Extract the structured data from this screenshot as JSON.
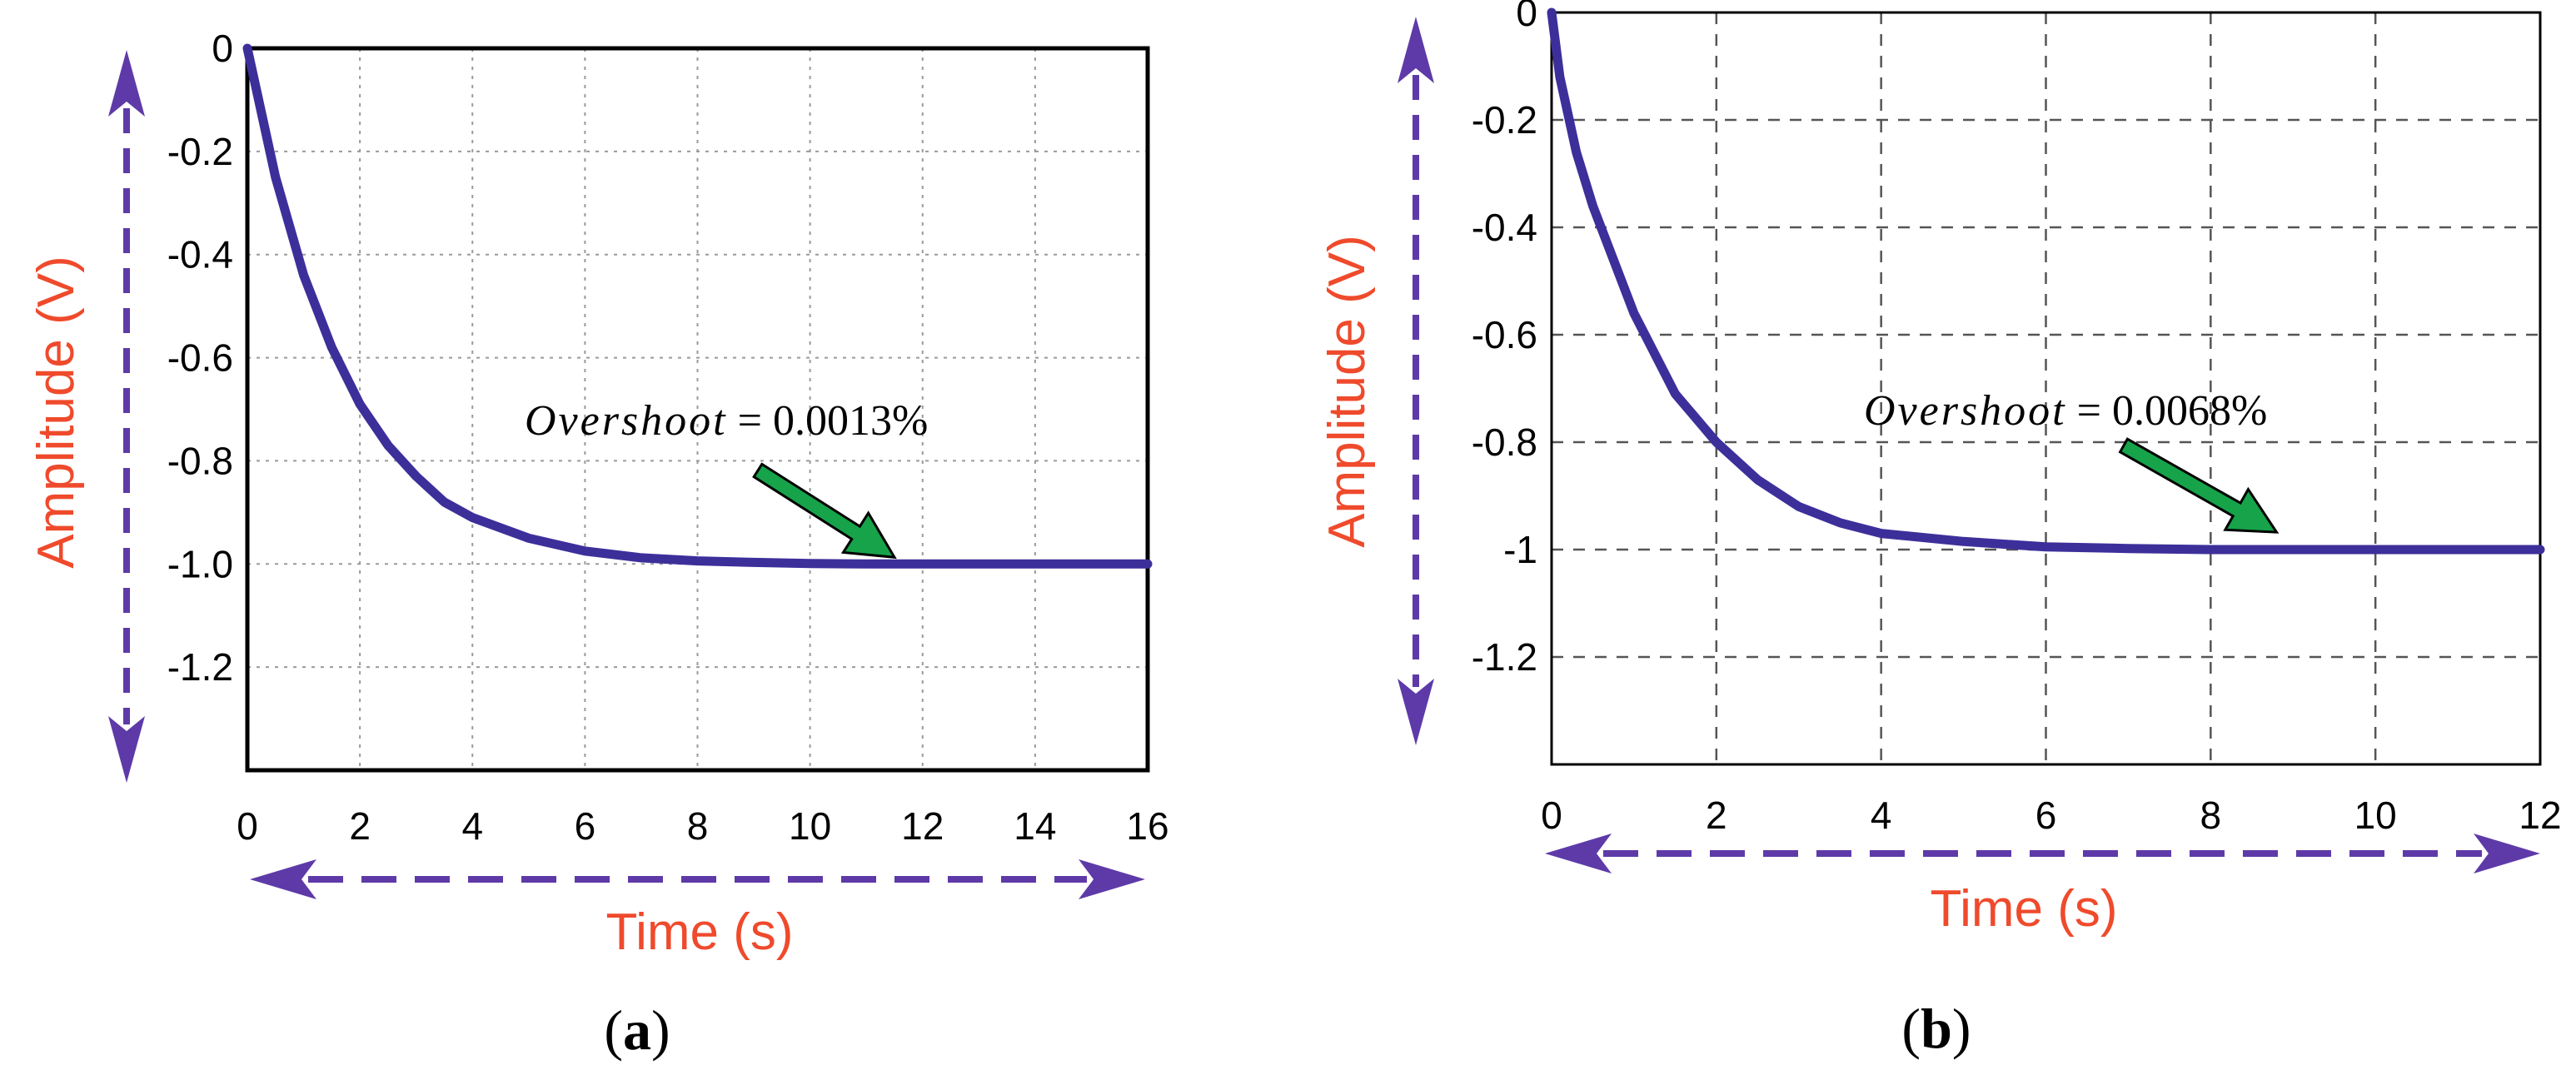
{
  "colors": {
    "curve": "#3d2f9a",
    "axis_arrow": "#5e3aa8",
    "axis_title": "#ef4a2c",
    "annotation_arrow": "#16a34a",
    "annotation_arrow_edge": "#000000",
    "frame": "#000000"
  },
  "chart_data": [
    {
      "type": "line",
      "panel_label": "(a)",
      "xlabel": "Time (s)",
      "ylabel": "Amplitude (V)",
      "xlim": [
        0,
        16
      ],
      "ylim": [
        -1.4,
        0
      ],
      "xticks": [
        "0",
        "2",
        "4",
        "6",
        "8",
        "10",
        "12",
        "14",
        "16"
      ],
      "xtick_values": [
        0,
        2,
        4,
        6,
        8,
        10,
        12,
        14,
        16
      ],
      "yticks": [
        "0",
        "-0.2",
        "-0.4",
        "-0.6",
        "-0.8",
        "-1.0",
        "-1.2"
      ],
      "ytick_values": [
        0,
        -0.2,
        -0.4,
        -0.6,
        -0.8,
        -1.0,
        -1.2
      ],
      "grid": "dotted",
      "series": [
        {
          "x": [
            0,
            0.5,
            1,
            1.5,
            2,
            2.5,
            3,
            3.5,
            4,
            5,
            6,
            7,
            8,
            9,
            10,
            11,
            12,
            13,
            14,
            15,
            16
          ],
          "y": [
            0,
            -0.25,
            -0.44,
            -0.58,
            -0.69,
            -0.77,
            -0.83,
            -0.88,
            -0.91,
            -0.95,
            -0.975,
            -0.988,
            -0.994,
            -0.997,
            -0.999,
            -1.0,
            -1.0,
            -1.0,
            -1.0,
            -1.0,
            -1.0
          ]
        }
      ],
      "annotation": {
        "label": "Overshoot",
        "value": "= 0.0013%",
        "arrow_target": [
          11.5,
          -1.0
        ]
      }
    },
    {
      "type": "line",
      "panel_label": "(b)",
      "xlabel": "Time (s)",
      "ylabel": "Amplitude (V)",
      "xlim": [
        0,
        12
      ],
      "ylim": [
        -1.4,
        0
      ],
      "xticks": [
        "0",
        "2",
        "4",
        "6",
        "8",
        "10",
        "12"
      ],
      "xtick_values": [
        0,
        2,
        4,
        6,
        8,
        10,
        12
      ],
      "yticks": [
        "0",
        "-0.2",
        "-0.4",
        "-0.6",
        "-0.8",
        "-1",
        "-1.2"
      ],
      "ytick_values": [
        0,
        -0.2,
        -0.4,
        -0.6,
        -0.8,
        -1.0,
        -1.2
      ],
      "grid": "dashed",
      "series": [
        {
          "x": [
            0,
            0.1,
            0.3,
            0.5,
            1,
            1.5,
            2,
            2.5,
            3,
            3.5,
            4,
            5,
            6,
            7,
            8,
            9,
            10,
            11,
            12
          ],
          "y": [
            0,
            -0.12,
            -0.26,
            -0.36,
            -0.56,
            -0.71,
            -0.8,
            -0.87,
            -0.92,
            -0.95,
            -0.97,
            -0.985,
            -0.995,
            -0.998,
            -1.0,
            -1.0,
            -1.0,
            -1.0,
            -1.0
          ]
        }
      ],
      "annotation": {
        "label": "Overshoot",
        "value": "= 0.0068%",
        "arrow_target": [
          8.8,
          -0.98
        ]
      }
    }
  ]
}
